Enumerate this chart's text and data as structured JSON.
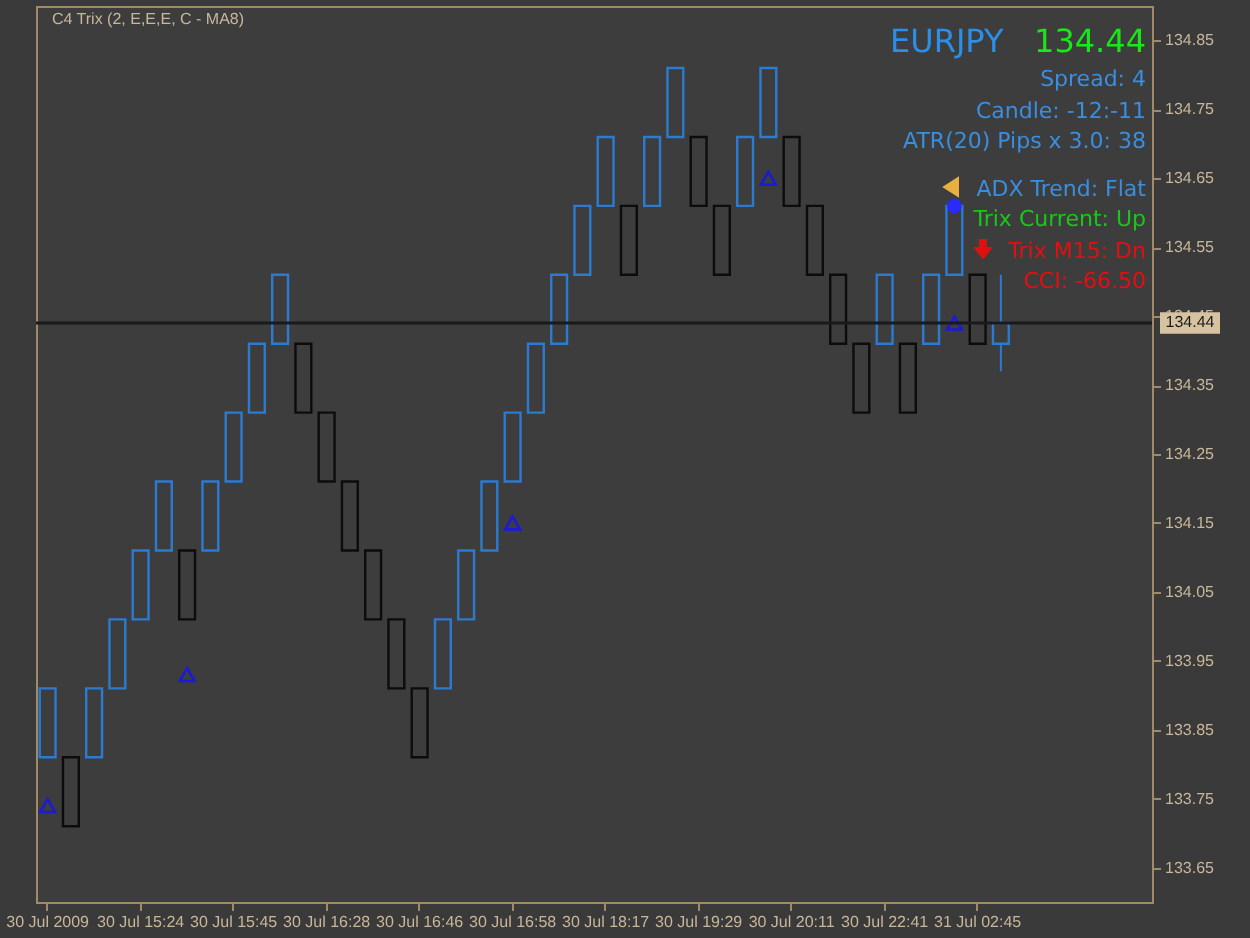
{
  "chart_data": {
    "type": "candlestick",
    "title": "C4 Trix (2, E,E,E, C - MA8)",
    "categories": [
      "30 Jul 2009",
      null,
      null,
      null,
      "30 Jul 15:24",
      null,
      null,
      null,
      "30 Jul 15:45",
      null,
      null,
      null,
      "30 Jul 16:28",
      null,
      null,
      null,
      "30 Jul 16:46",
      null,
      null,
      null,
      "30 Jul 16:58",
      null,
      null,
      null,
      "30 Jul 18:17",
      null,
      null,
      null,
      "30 Jul 19:29",
      null,
      null,
      null,
      "30 Jul 20:11",
      null,
      null,
      null,
      "30 Jul 22:41",
      null,
      null,
      null,
      "31 Jul 02:45",
      null,
      null,
      null,
      null,
      null,
      null,
      null
    ],
    "ohlc": [
      [
        133.81,
        133.91,
        133.81,
        133.91
      ],
      [
        133.81,
        133.81,
        133.71,
        133.71
      ],
      [
        133.81,
        133.91,
        133.81,
        133.91
      ],
      [
        133.91,
        134.01,
        133.91,
        134.01
      ],
      [
        134.01,
        134.11,
        134.01,
        134.11
      ],
      [
        134.11,
        134.21,
        134.11,
        134.21
      ],
      [
        134.11,
        134.11,
        134.01,
        134.01
      ],
      [
        134.11,
        134.21,
        134.11,
        134.21
      ],
      [
        134.21,
        134.31,
        134.21,
        134.31
      ],
      [
        134.31,
        134.41,
        134.31,
        134.41
      ],
      [
        134.41,
        134.51,
        134.41,
        134.51
      ],
      [
        134.41,
        134.41,
        134.31,
        134.31
      ],
      [
        134.31,
        134.31,
        134.21,
        134.21
      ],
      [
        134.21,
        134.21,
        134.11,
        134.11
      ],
      [
        134.11,
        134.11,
        134.01,
        134.01
      ],
      [
        134.01,
        134.01,
        133.91,
        133.91
      ],
      [
        133.91,
        133.91,
        133.81,
        133.81
      ],
      [
        133.91,
        134.01,
        133.91,
        134.01
      ],
      [
        134.01,
        134.11,
        134.01,
        134.11
      ],
      [
        134.11,
        134.21,
        134.11,
        134.21
      ],
      [
        134.21,
        134.31,
        134.21,
        134.31
      ],
      [
        134.31,
        134.41,
        134.31,
        134.41
      ],
      [
        134.41,
        134.51,
        134.41,
        134.51
      ],
      [
        134.51,
        134.61,
        134.51,
        134.61
      ],
      [
        134.61,
        134.71,
        134.61,
        134.71
      ],
      [
        134.61,
        134.61,
        134.51,
        134.51
      ],
      [
        134.61,
        134.71,
        134.61,
        134.71
      ],
      [
        134.71,
        134.81,
        134.71,
        134.81
      ],
      [
        134.71,
        134.71,
        134.61,
        134.61
      ],
      [
        134.61,
        134.61,
        134.51,
        134.51
      ],
      [
        134.61,
        134.71,
        134.61,
        134.71
      ],
      [
        134.71,
        134.81,
        134.71,
        134.81
      ],
      [
        134.71,
        134.71,
        134.61,
        134.61
      ],
      [
        134.61,
        134.61,
        134.51,
        134.51
      ],
      [
        134.51,
        134.51,
        134.41,
        134.41
      ],
      [
        134.41,
        134.41,
        134.31,
        134.31
      ],
      [
        134.41,
        134.51,
        134.41,
        134.51
      ],
      [
        134.41,
        134.41,
        134.31,
        134.31
      ],
      [
        134.41,
        134.51,
        134.41,
        134.51
      ],
      [
        134.51,
        134.61,
        134.51,
        134.61
      ],
      [
        134.51,
        134.51,
        134.41,
        134.41
      ],
      [
        134.41,
        134.51,
        134.37,
        134.44
      ],
      null,
      null,
      null,
      null,
      null,
      null
    ],
    "colors": [
      "#2b7bd1",
      "#0c0c0c",
      "#2b7bd1",
      "#2b7bd1",
      "#2b7bd1",
      "#2b7bd1",
      "#0c0c0c",
      "#2b7bd1",
      "#2b7bd1",
      "#2b7bd1",
      "#2b7bd1",
      "#0c0c0c",
      "#0c0c0c",
      "#0c0c0c",
      "#0c0c0c",
      "#0c0c0c",
      "#0c0c0c",
      "#2b7bd1",
      "#2b7bd1",
      "#2b7bd1",
      "#2b7bd1",
      "#2b7bd1",
      "#2b7bd1",
      "#2b7bd1",
      "#2b7bd1",
      "#0c0c0c",
      "#2b7bd1",
      "#2b7bd1",
      "#0c0c0c",
      "#0c0c0c",
      "#2b7bd1",
      "#2b7bd1",
      "#0c0c0c",
      "#0c0c0c",
      "#0c0c0c",
      "#0c0c0c",
      "#2b7bd1",
      "#0c0c0c",
      "#2b7bd1",
      "#2b7bd1",
      "#0c0c0c",
      "#2b7bd1",
      null,
      null,
      null,
      null,
      null,
      null
    ],
    "series": [
      {
        "type": "scatter",
        "marker": "triangle",
        "color": "#1a1ad8",
        "values": [
          133.74,
          null,
          null,
          null,
          null,
          null,
          133.93,
          null,
          null,
          null,
          null,
          null,
          null,
          null,
          null,
          null,
          null,
          null,
          null,
          null,
          134.15,
          null,
          null,
          null,
          null,
          null,
          null,
          null,
          null,
          null,
          null,
          134.65,
          null,
          null,
          null,
          null,
          null,
          null,
          null,
          134.44,
          null,
          null,
          null,
          null,
          null,
          null,
          null,
          null
        ]
      },
      {
        "type": "scatter",
        "marker": "circle",
        "color": "#2a2aff",
        "values": [
          null,
          null,
          null,
          null,
          null,
          null,
          null,
          null,
          null,
          null,
          null,
          null,
          null,
          null,
          null,
          null,
          null,
          null,
          null,
          null,
          null,
          null,
          null,
          null,
          null,
          null,
          null,
          null,
          null,
          null,
          null,
          null,
          null,
          null,
          null,
          null,
          null,
          null,
          null,
          134.61,
          null,
          null,
          null,
          null,
          null,
          null,
          null,
          null
        ]
      }
    ],
    "ylim": [
      133.6,
      134.9
    ],
    "yticks": [
      133.65,
      133.75,
      133.85,
      133.95,
      134.05,
      134.15,
      134.25,
      134.35,
      134.45,
      134.55,
      134.65,
      134.75,
      134.85
    ],
    "ref_lines": [
      {
        "axis": "y",
        "value": 134.44,
        "label": "134.44",
        "color": "#1a1a1a"
      }
    ],
    "annotations": [
      "EURJPY",
      "134.44",
      "Spread:  4",
      "Candle:  -12:-11",
      "ATR(20) Pips x 3.0:  38",
      "ADX Trend: Flat",
      "Trix Current: Up",
      "Trix M15:  Dn",
      "CCI: -66.50"
    ]
  }
}
